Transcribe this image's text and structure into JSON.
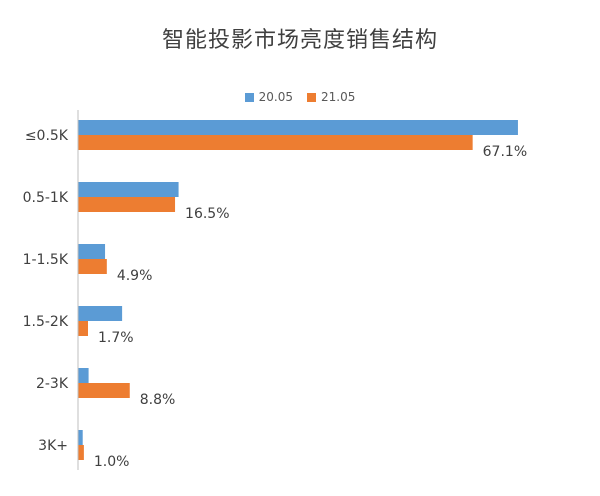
{
  "chart_data": {
    "type": "bar",
    "orientation": "horizontal",
    "title": "智能投影市场亮度销售结构",
    "categories": [
      "≤0.5K",
      "0.5-1K",
      "1-1.5K",
      "1.5-2K",
      "2-3K",
      "3K+"
    ],
    "series": [
      {
        "name": "20.05",
        "color": "#5b9bd5",
        "values": [
          74.8,
          17.1,
          4.6,
          7.5,
          1.8,
          0.8
        ]
      },
      {
        "name": "21.05",
        "color": "#ed7d31",
        "values": [
          67.1,
          16.5,
          4.9,
          1.7,
          8.8,
          1.0
        ]
      }
    ],
    "data_labels": [
      "67.1%",
      "16.5%",
      "4.9%",
      "1.7%",
      "8.8%",
      "1.0%"
    ],
    "xlim": [
      0,
      76
    ],
    "legend_position": "top"
  }
}
